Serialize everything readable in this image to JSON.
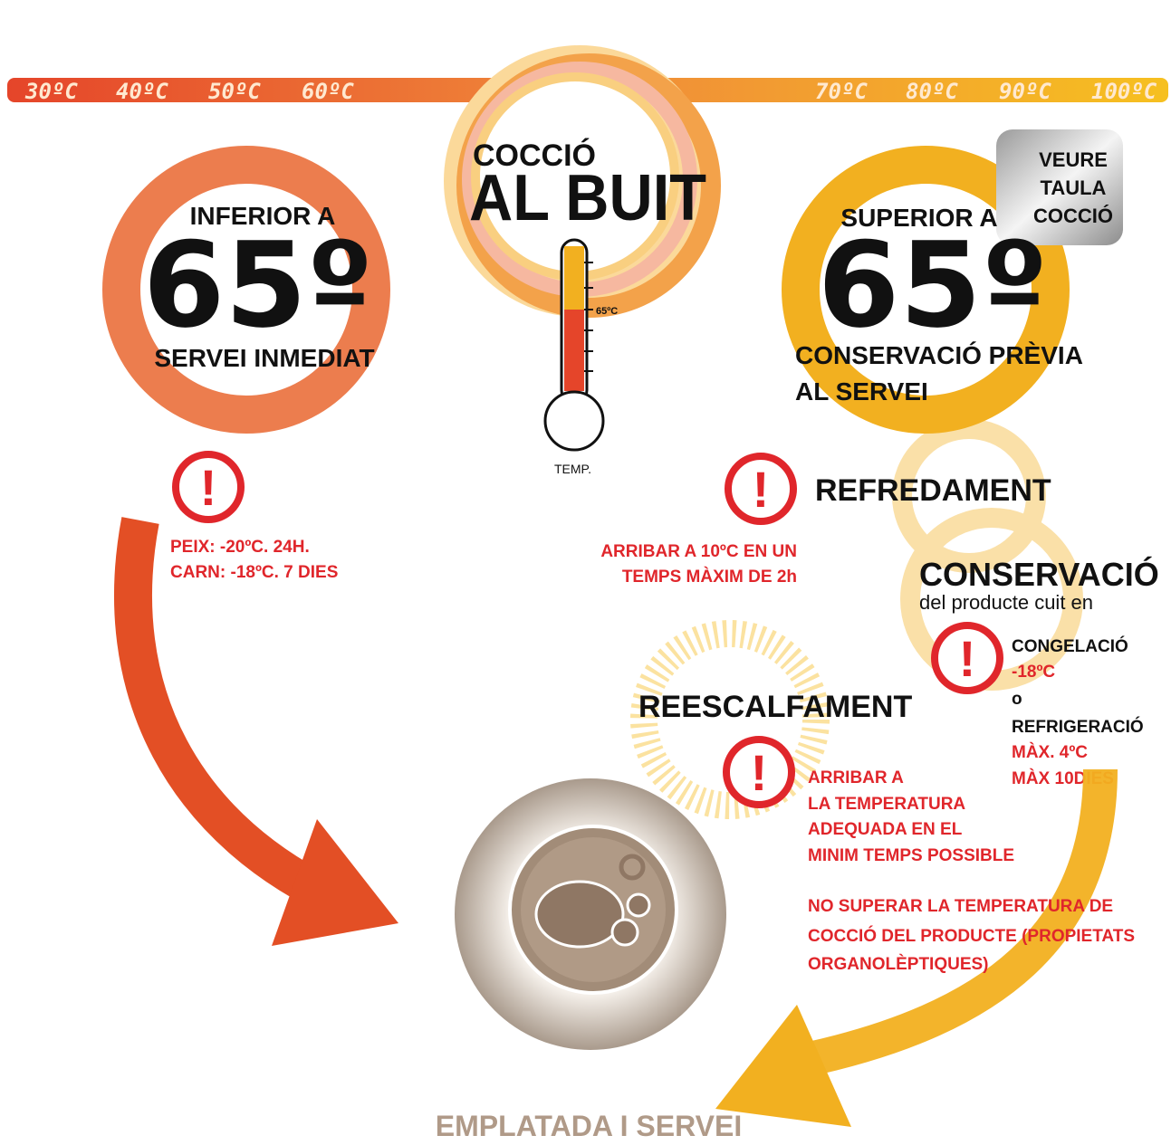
{
  "temperature_scale": [
    "30ºC",
    "40ºC",
    "50ºC",
    "60ºC",
    "70ºC",
    "80ºC",
    "90ºC",
    "100ºC"
  ],
  "center": {
    "title_small": "COCCIÓ",
    "title_big": "AL BUIT",
    "thermometer_mark": "65ºC",
    "thermometer_label": "TEMP."
  },
  "left": {
    "heading": "INFERIOR A",
    "value": "65º",
    "subtitle": "SERVEI INMEDIAT",
    "warning": [
      "PEIX: -20ºC. 24H.",
      "CARN: -18ºC. 7 DIES"
    ]
  },
  "right": {
    "heading": "SUPERIOR A",
    "value": "65º",
    "subtitle": [
      "CONSERVACIÓ PRÈVIA",
      "AL SERVEI"
    ],
    "button": [
      "VEURE",
      "TAULA",
      "COCCIÓ"
    ]
  },
  "cooling": {
    "title": "REFREDAMENT",
    "note": [
      "ARRIBAR A 10ºC EN UN",
      "TEMPS MÀXIM DE 2h"
    ]
  },
  "conservation": {
    "title": "CONSERVACIÓ",
    "subtitle": "del producte cuit en",
    "options": [
      "CONGELACIÓ",
      "-18ºC",
      "o",
      "REFRIGERACIÓ",
      "MÀX. 4ºC",
      "MÀX 10DIES"
    ]
  },
  "reheating": {
    "title": "REESCALFAMENT",
    "note": [
      "ARRIBAR A",
      "LA TEMPERATURA",
      "ADEQUADA  EN EL",
      "MINIM TEMPS POSSIBLE"
    ],
    "warning": [
      "NO SUPERAR LA TEMPERATURA DE",
      "COCCIÓ DEL PRODUCTE (PROPIETATS",
      "ORGANOLÈPTIQUES)"
    ]
  },
  "footer": "EMPLATADA I SERVEI"
}
